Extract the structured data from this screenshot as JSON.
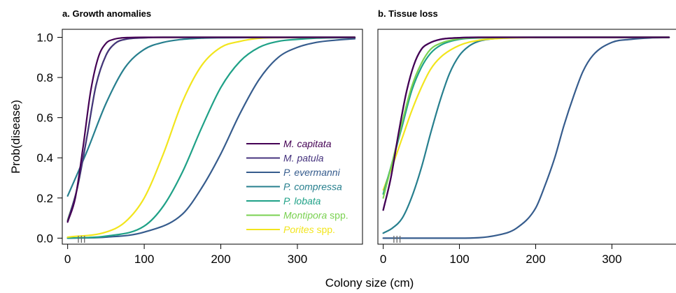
{
  "chart_data": {
    "type": "line",
    "xlabel": "Colony size (cm)",
    "ylabel": "Prob(disease)",
    "xlim": [
      -7,
      385
    ],
    "ylim": [
      -0.03,
      1.04
    ],
    "xticks": [
      0,
      100,
      200,
      300
    ],
    "xtick_labels": [
      "0",
      "100",
      "200",
      "300"
    ],
    "yticks": [
      0,
      0.2,
      0.4,
      0.6,
      0.8,
      1.0
    ],
    "ytick_labels": [
      "0.0",
      "0.2",
      "0.4",
      "0.6",
      "0.8",
      "1.0"
    ],
    "grid": false,
    "legend_placement": "center-right of first panel",
    "rug_x": [
      14,
      18,
      22
    ],
    "legend": [
      {
        "species": "M. capitata",
        "suffix": "",
        "color": "#440154"
      },
      {
        "species": "M. patula",
        "suffix": "",
        "color": "#46337e"
      },
      {
        "species": "P. evermanni",
        "suffix": "",
        "color": "#365c8d"
      },
      {
        "species": "P. compressa",
        "suffix": "",
        "color": "#277f8e"
      },
      {
        "species": "P. lobata",
        "suffix": "",
        "color": "#1fa187"
      },
      {
        "species": "Montipora",
        "suffix": " spp.",
        "color": "#7ad151"
      },
      {
        "species": "Porites",
        "suffix": " spp.",
        "color": "#f2e51d"
      }
    ],
    "panels": [
      {
        "title": "a. Growth anomalies",
        "series": [
          {
            "name": "P. evermanni",
            "color": "#365c8d",
            "x": [
              0,
              50,
              100,
              150,
              175,
              200,
              225,
              250,
              275,
              300,
              325,
              350,
              375
            ],
            "y": [
              0.0,
              0.005,
              0.03,
              0.12,
              0.25,
              0.42,
              0.62,
              0.79,
              0.9,
              0.95,
              0.975,
              0.986,
              0.993
            ]
          },
          {
            "name": "P. lobata",
            "color": "#1fa187",
            "x": [
              0,
              50,
              100,
              125,
              150,
              175,
              200,
              225,
              250,
              275,
              300,
              325,
              375
            ],
            "y": [
              0.0,
              0.01,
              0.06,
              0.16,
              0.33,
              0.55,
              0.75,
              0.88,
              0.95,
              0.98,
              0.99,
              0.996,
              0.999
            ]
          },
          {
            "name": "Porites spp.",
            "color": "#f2e51d",
            "x": [
              0,
              50,
              75,
              100,
              125,
              150,
              175,
              200,
              225,
              250,
              300,
              375
            ],
            "y": [
              0.005,
              0.03,
              0.08,
              0.2,
              0.42,
              0.68,
              0.86,
              0.95,
              0.98,
              0.995,
              0.999,
              1.0
            ]
          },
          {
            "name": "P. compressa",
            "color": "#277f8e",
            "x": [
              0,
              25,
              50,
              75,
              100,
              125,
              150,
              175,
              200,
              250,
              300,
              375
            ],
            "y": [
              0.21,
              0.43,
              0.67,
              0.85,
              0.94,
              0.975,
              0.99,
              0.996,
              0.998,
              0.999,
              1.0,
              1.0
            ]
          },
          {
            "name": "Montipora spp.",
            "color": "#7ad151",
            "x": [
              0,
              12,
              25,
              37,
              50,
              62,
              75,
              100,
              125,
              150,
              200,
              375
            ],
            "y": [
              0.09,
              0.24,
              0.5,
              0.76,
              0.91,
              0.97,
              0.99,
              0.998,
              1.0,
              1.0,
              1.0,
              1.0
            ]
          },
          {
            "name": "M. patula",
            "color": "#46337e",
            "x": [
              0,
              12,
              25,
              37,
              50,
              62,
              75,
              100,
              125,
              150,
              200,
              375
            ],
            "y": [
              0.085,
              0.24,
              0.5,
              0.76,
              0.91,
              0.97,
              0.99,
              0.998,
              1.0,
              1.0,
              1.0,
              1.0
            ]
          },
          {
            "name": "M. capitata",
            "color": "#440154",
            "x": [
              0,
              10,
              20,
              30,
              40,
              50,
              60,
              70,
              80,
              100,
              150,
              375
            ],
            "y": [
              0.08,
              0.2,
              0.45,
              0.73,
              0.9,
              0.97,
              0.99,
              0.997,
              0.999,
              1.0,
              1.0,
              1.0
            ]
          }
        ]
      },
      {
        "title": "b. Tissue loss",
        "series": [
          {
            "name": "P. evermanni",
            "color": "#365c8d",
            "x": [
              0,
              100,
              150,
              175,
              200,
              212,
              225,
              237,
              250,
              262,
              275,
              300,
              325,
              350,
              375
            ],
            "y": [
              0.0,
              0.0,
              0.015,
              0.05,
              0.15,
              0.26,
              0.4,
              0.56,
              0.71,
              0.83,
              0.91,
              0.975,
              0.99,
              0.997,
              0.999
            ]
          },
          {
            "name": "P. compressa",
            "color": "#277f8e",
            "x": [
              0,
              12,
              25,
              37,
              50,
              62,
              75,
              87,
              100,
              112,
              125,
              150,
              200,
              375
            ],
            "y": [
              0.025,
              0.05,
              0.1,
              0.2,
              0.35,
              0.52,
              0.69,
              0.82,
              0.91,
              0.955,
              0.98,
              0.995,
              0.999,
              1.0
            ]
          },
          {
            "name": "Porites spp.",
            "color": "#f2e51d",
            "x": [
              0,
              12,
              25,
              37,
              50,
              62,
              75,
              100,
              125,
              150,
              200,
              250,
              375
            ],
            "y": [
              0.24,
              0.36,
              0.5,
              0.63,
              0.75,
              0.84,
              0.9,
              0.96,
              0.985,
              0.994,
              0.999,
              1.0,
              1.0
            ]
          },
          {
            "name": "P. lobata",
            "color": "#1fa187",
            "x": [
              0,
              12,
              25,
              37,
              50,
              62,
              75,
              100,
              125,
              150,
              200,
              375
            ],
            "y": [
              0.22,
              0.38,
              0.56,
              0.73,
              0.85,
              0.92,
              0.96,
              0.99,
              0.997,
              0.999,
              1.0,
              1.0
            ]
          },
          {
            "name": "Montipora spp.",
            "color": "#7ad151",
            "x": [
              0,
              12,
              25,
              37,
              50,
              62,
              75,
              100,
              125,
              150,
              200,
              375
            ],
            "y": [
              0.2,
              0.38,
              0.58,
              0.75,
              0.87,
              0.94,
              0.97,
              0.993,
              0.998,
              1.0,
              1.0,
              1.0
            ]
          },
          {
            "name": "M. patula",
            "color": "#46337e",
            "x": [
              0,
              10,
              20,
              30,
              40,
              50,
              60,
              75,
              100,
              125,
              150,
              375
            ],
            "y": [
              0.14,
              0.3,
              0.52,
              0.72,
              0.86,
              0.94,
              0.97,
              0.99,
              0.998,
              1.0,
              1.0,
              1.0
            ]
          },
          {
            "name": "M. capitata",
            "color": "#440154",
            "x": [
              0,
              10,
              20,
              30,
              40,
              50,
              60,
              75,
              100,
              125,
              150,
              375
            ],
            "y": [
              0.14,
              0.3,
              0.52,
              0.72,
              0.86,
              0.94,
              0.97,
              0.99,
              0.998,
              1.0,
              1.0,
              1.0
            ]
          }
        ]
      }
    ]
  }
}
